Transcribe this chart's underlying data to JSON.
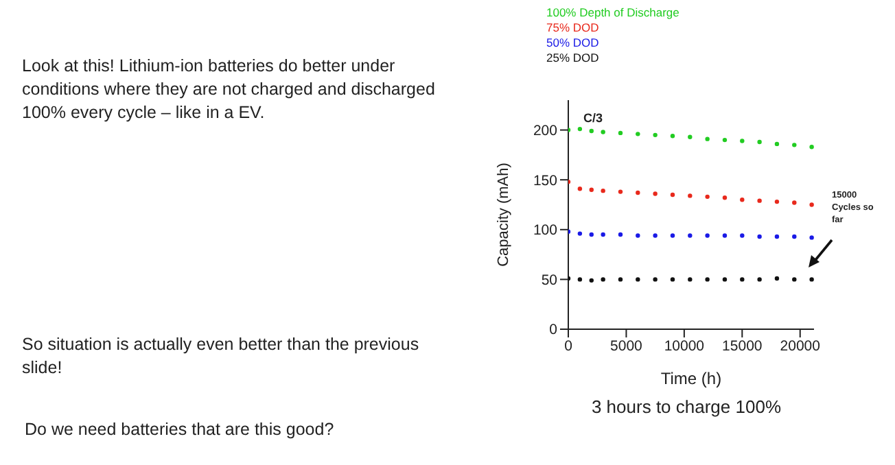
{
  "chart_data": {
    "type": "scatter",
    "xlabel": "Time (h)",
    "ylabel": "Capacity (mAh)",
    "xlim": [
      0,
      21200
    ],
    "xticks": [
      0,
      5000,
      10000,
      15000,
      20000
    ],
    "ylim": [
      0,
      230
    ],
    "yticks": [
      0,
      50,
      100,
      150,
      200
    ],
    "legend": "top",
    "marker": "circle",
    "x": [
      0,
      1000,
      2000,
      3000,
      4500,
      6000,
      7500,
      9000,
      10500,
      12000,
      13500,
      15000,
      16500,
      18000,
      19500,
      21000
    ],
    "series": [
      {
        "name": "100% Depth of Discharge",
        "color": "#22cc22",
        "values": [
          200,
          201,
          199,
          198,
          197,
          196,
          195,
          194,
          193,
          191,
          190,
          189,
          188,
          186,
          185,
          183
        ]
      },
      {
        "name": "75% DOD",
        "color": "#e8291c",
        "values": [
          148,
          141,
          140,
          139,
          138,
          137,
          136,
          135,
          134,
          133,
          132,
          130,
          129,
          128,
          127,
          125
        ]
      },
      {
        "name": "50% DOD",
        "color": "#1a1ae6",
        "values": [
          98,
          96,
          95,
          95,
          95,
          94,
          94,
          94,
          94,
          94,
          94,
          94,
          93,
          93,
          93,
          92
        ]
      },
      {
        "name": "25% DOD",
        "color": "#111111",
        "values": [
          51,
          50,
          49,
          50,
          50,
          50,
          50,
          50,
          50,
          50,
          50,
          50,
          50,
          51,
          50,
          50
        ]
      }
    ],
    "annotations": [
      "Look at this!  Lithium-ion batteries do better under conditions where they are not charged and discharged 100% every cycle – like in a EV.",
      "So situation is actually even better than the previous slide!",
      "Do we need batteries that are this good?",
      "C/3",
      "3 hours to charge 100%",
      "15000 Cycles so far"
    ]
  }
}
